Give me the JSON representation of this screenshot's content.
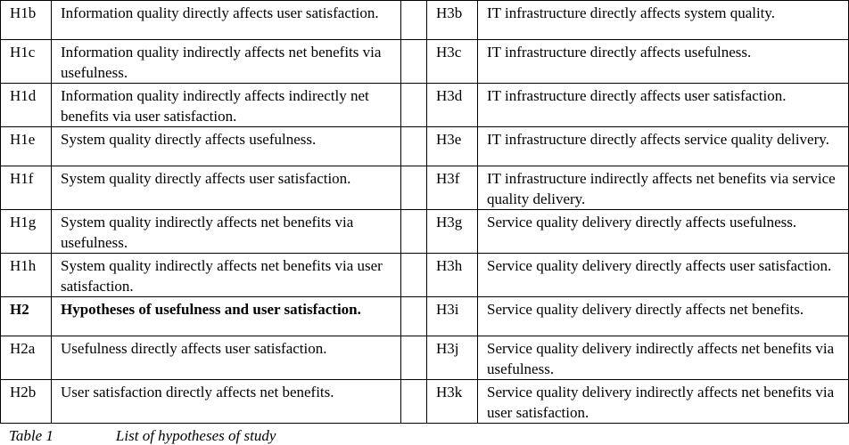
{
  "table": {
    "rows": [
      [
        "H1b",
        "Information quality directly affects user satisfaction.",
        "H3b",
        "IT infrastructure directly affects system quality."
      ],
      [
        "H1c",
        "Information quality indirectly affects net benefits via usefulness.",
        "H3c",
        "IT infrastructure directly affects usefulness."
      ],
      [
        "H1d",
        "Information quality indirectly affects indirectly net benefits via user satisfaction.",
        "H3d",
        "IT infrastructure directly affects user satisfaction."
      ],
      [
        "H1e",
        "System quality directly affects usefulness.",
        "H3e",
        "IT infrastructure directly affects service quality delivery."
      ],
      [
        "H1f",
        "System quality directly affects user satisfaction.",
        "H3f",
        "IT infrastructure indirectly affects net benefits via service quality delivery."
      ],
      [
        "H1g",
        "System quality indirectly affects net benefits via usefulness.",
        "H3g",
        "Service quality delivery directly affects usefulness."
      ],
      [
        "H1h",
        "System quality indirectly affects net benefits via user satisfaction.",
        "H3h",
        "Service quality delivery directly affects user satisfaction."
      ],
      [
        "H2",
        "Hypotheses of usefulness and user satisfaction.",
        "H3i",
        "Service quality delivery directly affects net benefits."
      ],
      [
        "H2a",
        "Usefulness directly affects user satisfaction.",
        "H3j",
        "Service quality delivery indirectly affects net benefits via usefulness."
      ],
      [
        "H2b",
        "User satisfaction directly affects net benefits.",
        "H3k",
        "Service quality delivery indirectly affects net benefits via user satisfaction."
      ]
    ]
  },
  "caption": {
    "label": "Table 1",
    "title": "List of hypotheses of study"
  }
}
